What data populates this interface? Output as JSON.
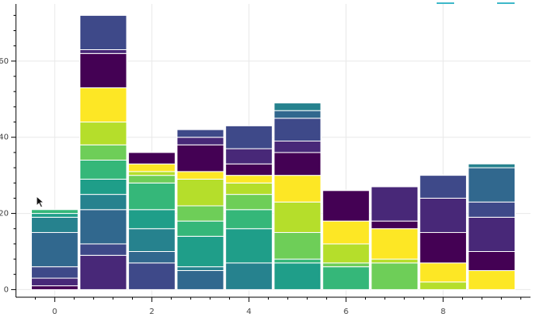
{
  "chart_data": {
    "type": "bar",
    "stacked": true,
    "x": [
      0,
      1,
      2,
      3,
      4,
      5,
      6,
      7,
      8,
      9
    ],
    "xticks": [
      "0",
      "2",
      "4",
      "6",
      "8"
    ],
    "yticks": [
      "0",
      "20",
      "40",
      "60"
    ],
    "ylim": [
      -2,
      75
    ],
    "xlim": [
      -0.8,
      9.8
    ],
    "grid": true,
    "legend": "top-right",
    "legend_color": "#3fb8c9",
    "palette": [
      "#440154",
      "#482878",
      "#3e4989",
      "#31688e",
      "#26828e",
      "#1f9e89",
      "#35b779",
      "#6ece58",
      "#b5de2b",
      "#fde725"
    ],
    "stacks": [
      [
        1,
        2,
        3,
        9,
        4,
        1,
        1
      ],
      [
        9,
        3,
        9,
        4,
        4,
        5,
        4,
        6,
        9,
        9,
        1,
        9
      ],
      [
        7,
        3,
        6,
        5,
        7,
        2,
        1,
        2,
        3
      ],
      [
        5,
        1,
        8,
        4,
        4,
        7,
        2,
        7,
        2,
        2
      ],
      [
        7,
        9,
        5,
        4,
        3,
        2,
        3,
        4,
        6
      ],
      [
        7,
        1,
        7,
        8,
        7,
        6,
        3,
        6,
        2,
        2
      ],
      [
        6,
        1,
        5,
        6,
        8
      ],
      [
        7,
        1,
        8,
        2,
        9
      ],
      [
        2,
        5,
        8,
        9,
        6
      ],
      [
        5,
        5,
        9,
        4,
        9,
        1
      ]
    ]
  }
}
